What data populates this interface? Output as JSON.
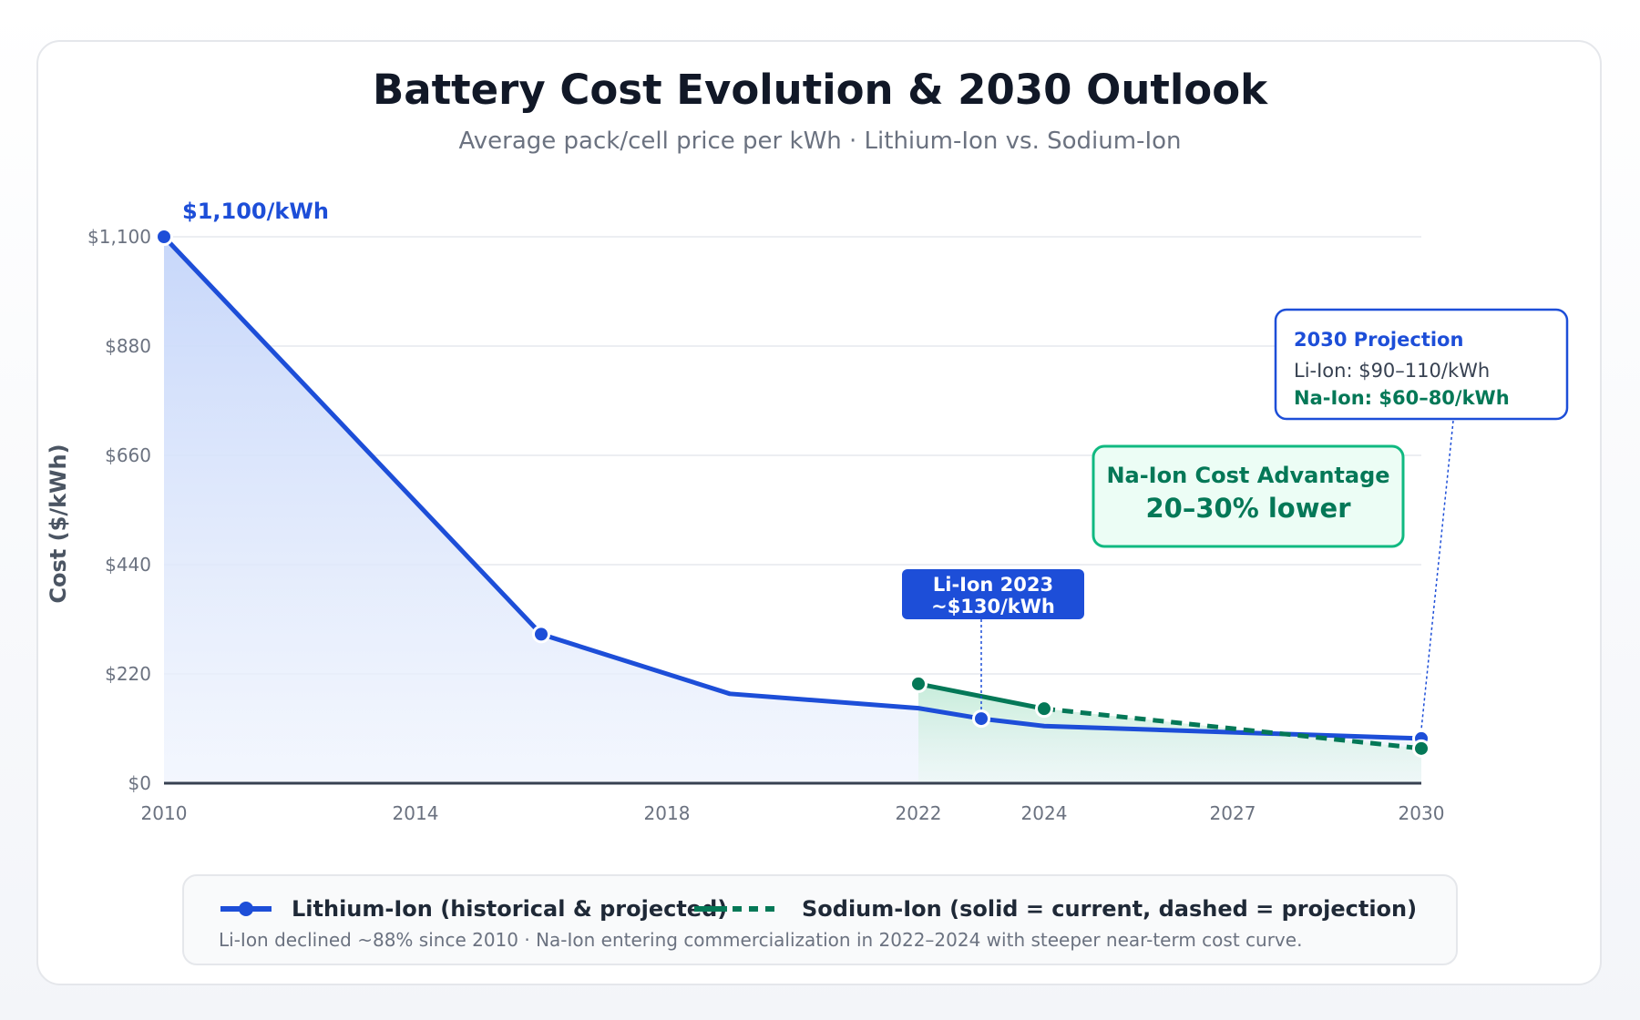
{
  "title": "Battery Cost Evolution & 2030 Outlook",
  "subtitle": "Average pack/cell price per kWh · Lithium-Ion vs. Sodium-Ion",
  "chart_data": {
    "type": "line",
    "ylabel": "Cost ($/kWh)",
    "xlabel": "",
    "ylim": [
      0,
      1100
    ],
    "yticks": [
      0,
      220,
      440,
      660,
      880,
      1100
    ],
    "ytick_labels": [
      "$0",
      "$220",
      "$440",
      "$660",
      "$880",
      "$1,100"
    ],
    "xlim": [
      2010,
      2030
    ],
    "xticks": [
      2010,
      2014,
      2018,
      2022,
      2024,
      2027,
      2030
    ],
    "xtick_labels": [
      "2010",
      "2014",
      "2018",
      "2022",
      "2024",
      "2027",
      "2030"
    ],
    "grid": true,
    "legend_position": "bottom",
    "series": [
      {
        "name": "Lithium-Ion (historical & projected)",
        "color": "#1d4ed8",
        "points": [
          {
            "x": 2010,
            "y": 1100,
            "marker": true
          },
          {
            "x": 2016,
            "y": 300,
            "marker": true
          },
          {
            "x": 2019,
            "y": 180,
            "marker": false
          },
          {
            "x": 2022,
            "y": 151,
            "marker": false
          },
          {
            "x": 2023,
            "y": 130,
            "marker": true
          },
          {
            "x": 2024,
            "y": 115,
            "marker": false
          },
          {
            "x": 2030,
            "y": 90,
            "marker": true
          }
        ]
      },
      {
        "name": "Sodium-Ion (solid = current, dashed = projection)",
        "color": "#047857",
        "current": [
          {
            "x": 2022,
            "y": 200,
            "marker": true
          },
          {
            "x": 2024,
            "y": 150,
            "marker": true
          }
        ],
        "projection": [
          {
            "x": 2024,
            "y": 150
          },
          {
            "x": 2030,
            "y": 70,
            "marker": true
          }
        ]
      }
    ],
    "annotations": {
      "start_label": "$1,100/kWh",
      "li_2023": {
        "line1": "Li-Ion 2023",
        "line2": "~$130/kWh"
      },
      "advantage": {
        "line1": "Na-Ion Cost Advantage",
        "line2": "20–30% lower"
      },
      "projection": {
        "title": "2030 Projection",
        "li": "Li-Ion: $90–110/kWh",
        "na": "Na-Ion: $60–80/kWh"
      }
    }
  },
  "legend": {
    "li_label": "Lithium-Ion (historical & projected)",
    "na_label": "Sodium-Ion (solid = current, dashed = projection)",
    "note": "Li-Ion declined ~88% since 2010 · Na-Ion entering commercialization in 2022–2024 with steeper near-term cost curve."
  }
}
